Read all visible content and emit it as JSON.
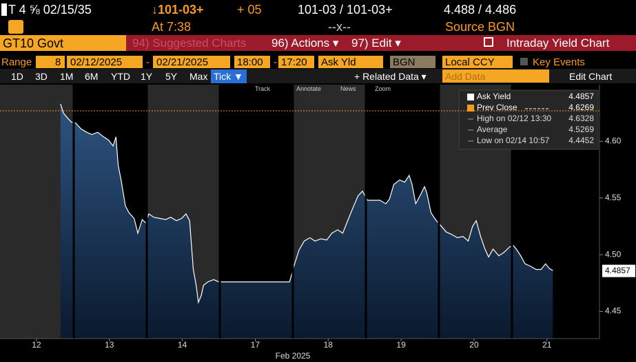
{
  "header": {
    "ticker": "T 4 ⅝ 02/15/35",
    "price": "↓101-03+",
    "change": "+ 05",
    "bid_ask": "101-03 / 101-03+",
    "yields": "4.488 / 4.486",
    "time": "At 7:38",
    "size": "--x--",
    "source": "Source BGN"
  },
  "command_bar": {
    "security": "GT10 Govt",
    "suggested": "94) Suggested Charts",
    "actions": "96) Actions ▾",
    "edit": "97) Edit ▾",
    "title": "Intraday Yield Chart"
  },
  "settings": {
    "range_label": "Range",
    "period": "8",
    "start_date": "02/12/2025",
    "dash1": "-",
    "end_date": "02/21/2025",
    "start_time": "18:00",
    "dash2": "-",
    "end_time": "17:20",
    "field": "Ask Yld",
    "source": "BGN",
    "currency": "Local CCY",
    "key_events": "Key Events"
  },
  "periods": [
    "1D",
    "3D",
    "1M",
    "6M",
    "YTD",
    "1Y",
    "5Y",
    "Max",
    "Tick ▼"
  ],
  "active_period": 8,
  "related_data": "+ Related Data ▾",
  "add_data": "Add Data",
  "edit_chart": "Edit Chart",
  "tools": [
    "Track",
    "Annotate",
    "News",
    "Zoom"
  ],
  "chart_data": {
    "type": "line",
    "x_label": "Feb 2025",
    "x": [
      0.33,
      0.37,
      0.42,
      0.48,
      0.54,
      0.61,
      0.69,
      0.76,
      0.84,
      0.92,
      0.99,
      1.05,
      1.09,
      1.12,
      1.16,
      1.22,
      1.27,
      1.34,
      1.39,
      1.45,
      1.5,
      1.54,
      1.61,
      1.69,
      1.77,
      1.84,
      1.92,
      1.99,
      2.05,
      2.1,
      2.12,
      2.15,
      2.19,
      2.22,
      2.26,
      2.29,
      2.35,
      2.43,
      2.5,
      2.55,
      3.47,
      3.54,
      3.6,
      3.67,
      3.75,
      3.82,
      3.9,
      3.98,
      4.05,
      4.13,
      4.2,
      4.28,
      4.35,
      4.41,
      4.47,
      4.54,
      4.62,
      4.71,
      4.79,
      4.84,
      4.9,
      4.98,
      5.05,
      5.11,
      5.15,
      5.2,
      5.26,
      5.32,
      5.35,
      5.41,
      5.47,
      5.54,
      5.62,
      5.69,
      5.77,
      5.85,
      5.92,
      5.98,
      6.03,
      6.09,
      6.15,
      6.2,
      6.26,
      6.34,
      6.41,
      6.49,
      6.54,
      6.58,
      6.64,
      6.7,
      6.77,
      6.85,
      6.92,
      6.98,
      7.03,
      7.08
    ],
    "series": [
      {
        "name": "Ask Yield",
        "color": "#ffffff",
        "values": [
          4.633,
          4.625,
          4.621,
          4.617,
          4.616,
          4.611,
          4.608,
          4.606,
          4.608,
          4.604,
          4.601,
          4.596,
          4.604,
          4.579,
          4.566,
          4.543,
          4.537,
          4.532,
          4.519,
          4.531,
          4.528,
          4.536,
          4.533,
          4.532,
          4.531,
          4.533,
          4.53,
          4.532,
          4.536,
          4.53,
          4.513,
          4.487,
          4.473,
          4.458,
          4.464,
          4.473,
          4.476,
          4.478,
          4.476,
          4.476,
          4.476,
          4.492,
          4.504,
          4.512,
          4.515,
          4.512,
          4.514,
          4.513,
          4.519,
          4.522,
          4.519,
          4.532,
          4.543,
          4.552,
          4.556,
          4.548,
          4.548,
          4.548,
          4.545,
          4.549,
          4.562,
          4.566,
          4.564,
          4.57,
          4.562,
          4.545,
          4.552,
          4.56,
          4.555,
          4.537,
          4.531,
          4.526,
          4.52,
          4.518,
          4.515,
          4.516,
          4.512,
          4.525,
          4.53,
          4.516,
          4.505,
          4.498,
          4.505,
          4.499,
          4.502,
          4.507,
          4.508,
          4.505,
          4.499,
          4.492,
          4.49,
          4.487,
          4.487,
          4.492,
          4.488,
          4.486
        ]
      }
    ],
    "last_value": 4.4857,
    "prev_close": {
      "label": "Prev Close",
      "value": 4.6269,
      "color": "#f59a23"
    },
    "stats": [
      {
        "label": "High on 02/12 13:30",
        "value": 4.6328
      },
      {
        "label": "Average",
        "value": 4.5269
      },
      {
        "label": "Low on 02/14 10:57",
        "value": 4.4452
      }
    ],
    "xlim": [
      -0.5,
      7.72
    ],
    "xticks": [
      {
        "value": 0,
        "label": "12"
      },
      {
        "value": 1,
        "label": "13"
      },
      {
        "value": 2,
        "label": "14"
      },
      {
        "value": 3,
        "label": "17"
      },
      {
        "value": 4,
        "label": "18"
      },
      {
        "value": 5,
        "label": "19"
      },
      {
        "value": 6,
        "label": "20"
      },
      {
        "value": 7,
        "label": "21"
      }
    ],
    "ylim": [
      4.426,
      4.65
    ],
    "yticks": [
      4.45,
      {
        "value": 4.5,
        "label": "4.50"
      },
      4.55,
      {
        "value": 4.6,
        "label": "4.60"
      }
    ]
  }
}
